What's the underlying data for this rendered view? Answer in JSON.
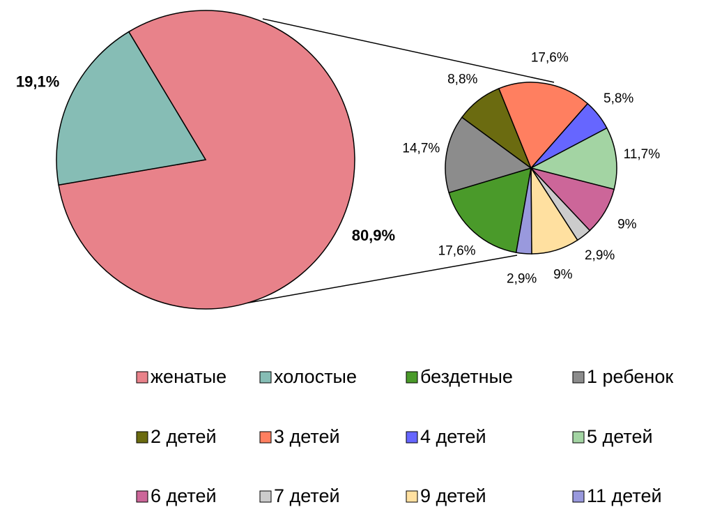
{
  "chart_data": [
    {
      "type": "pie",
      "categories": [
        "женатые",
        "холостые"
      ],
      "values": [
        80.9,
        19.1
      ],
      "value_labels": [
        "80,9%",
        "19,1%"
      ],
      "colors": [
        "#e8828a",
        "#86bdb5"
      ]
    },
    {
      "type": "pie",
      "categories": [
        "бездетные",
        "1 ребенок",
        "2 детей",
        "3 детей",
        "4 детей",
        "5 детей",
        "6 детей",
        "7 детей",
        "9 детей",
        "11 детей"
      ],
      "values": [
        17.6,
        14.7,
        8.8,
        17.6,
        5.8,
        11.7,
        9,
        2.9,
        9,
        2.9
      ],
      "value_labels": [
        "17,6%",
        "14,7%",
        "8,8%",
        "17,6%",
        "5,8%",
        "11,7%",
        "9%",
        "2,9%",
        "9%",
        "2,9%"
      ],
      "colors": [
        "#4a9a2a",
        "#8c8c8c",
        "#6b6b10",
        "#ff7f60",
        "#6666ff",
        "#a3d4a3",
        "#cc6699",
        "#cccccc",
        "#ffe0a0",
        "#9999dd"
      ]
    }
  ]
}
